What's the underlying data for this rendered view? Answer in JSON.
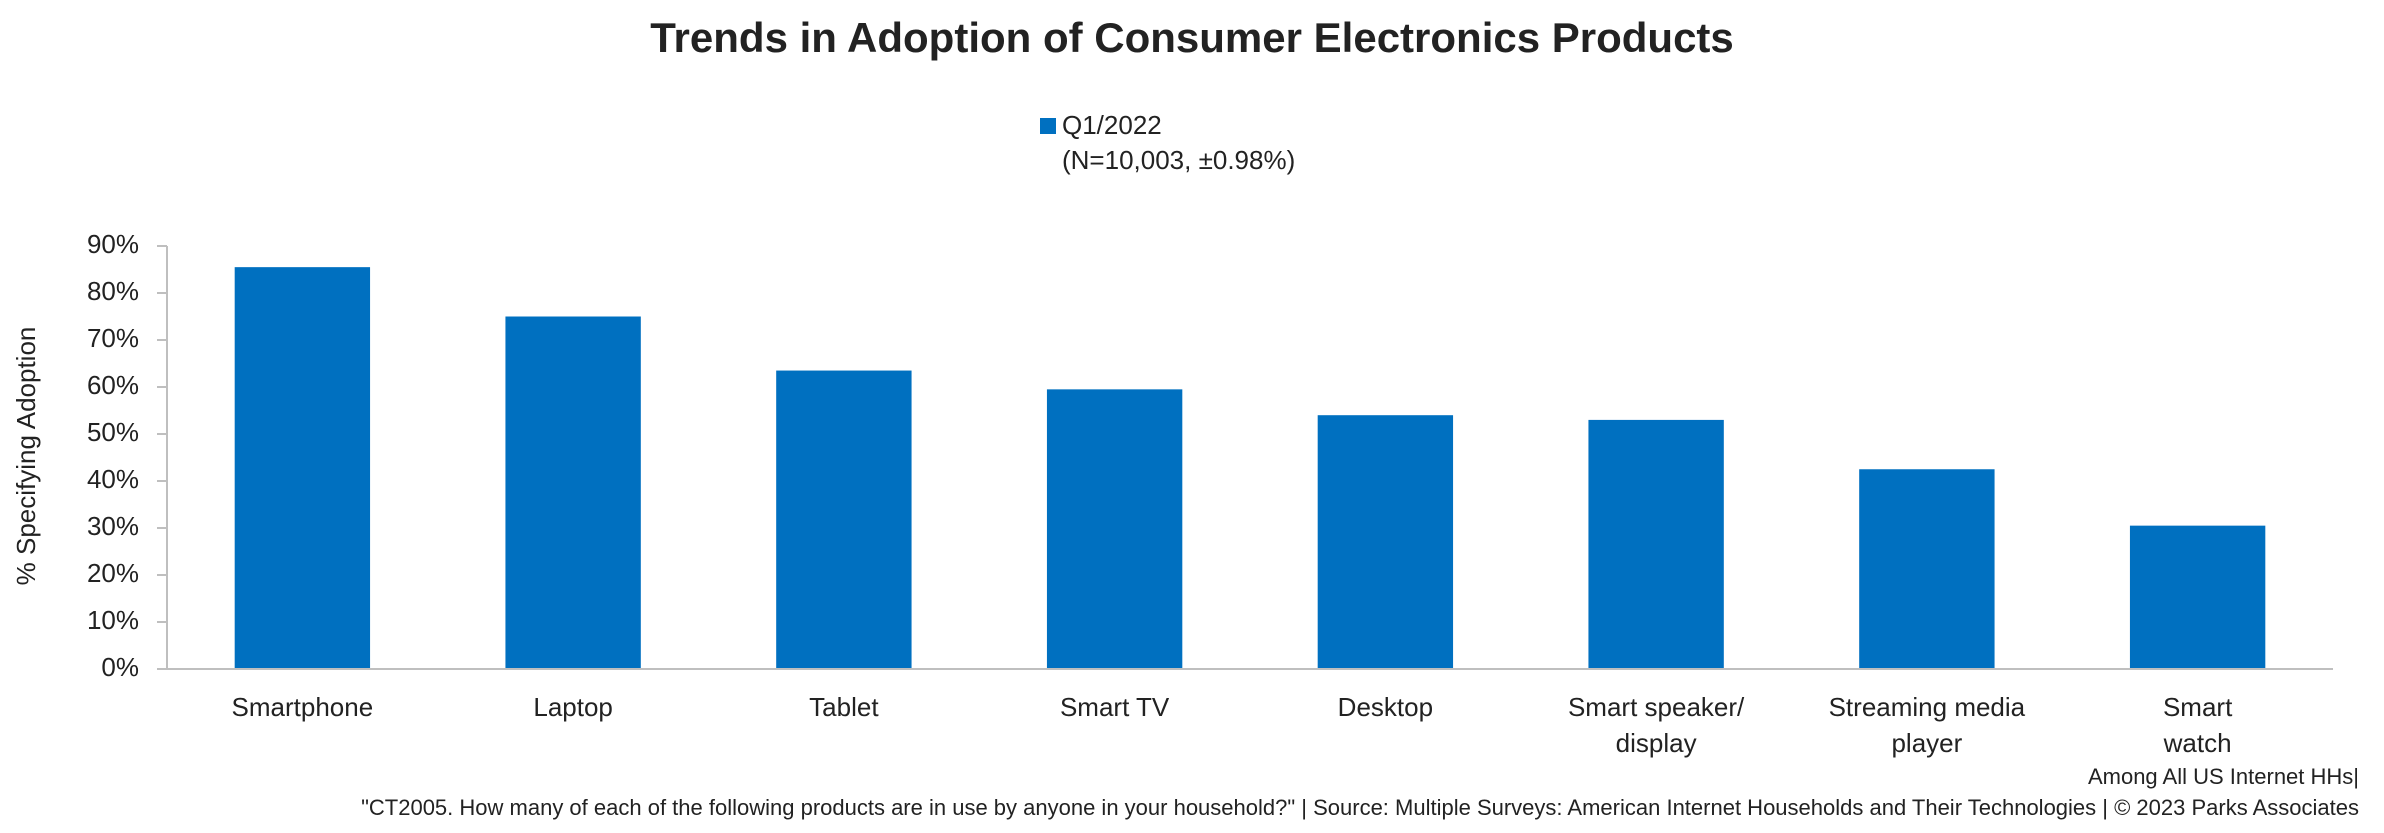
{
  "chart_data": {
    "type": "bar",
    "title": "Trends in Adoption of Consumer Electronics Products",
    "y_label": "% Specifying Adoption",
    "categories": [
      "Smartphone",
      "Laptop",
      "Tablet",
      "Smart TV",
      "Desktop",
      "Smart speaker/\ndisplay",
      "Streaming media\nplayer",
      "Smart\nwatch"
    ],
    "series": [
      {
        "name": "Q1/2022",
        "color": "#0070c0",
        "values": [
          85.5,
          75,
          63.5,
          59.5,
          54,
          53,
          42.5,
          30.5
        ]
      }
    ],
    "legend_subtitle": "(N=10,003, ±0.98%)",
    "ylim": [
      0,
      90
    ],
    "yticks": [
      {
        "value": 0,
        "label": "0%"
      },
      {
        "value": 10,
        "label": "10%"
      },
      {
        "value": 20,
        "label": "20%"
      },
      {
        "value": 30,
        "label": "30%"
      },
      {
        "value": 40,
        "label": "40%"
      },
      {
        "value": 50,
        "label": "50%"
      },
      {
        "value": 60,
        "label": "60%"
      },
      {
        "value": 70,
        "label": "70%"
      },
      {
        "value": 80,
        "label": "80%"
      },
      {
        "value": 90,
        "label": "90%"
      }
    ],
    "grid": false,
    "footnote": "Among All US Internet HHs|",
    "source": "\"CT2005. How many of each of the following products are in use by anyone in your household?\" | Source: Multiple Surveys: American Internet Households and Their Technologies | © 2023 Parks Associates"
  }
}
